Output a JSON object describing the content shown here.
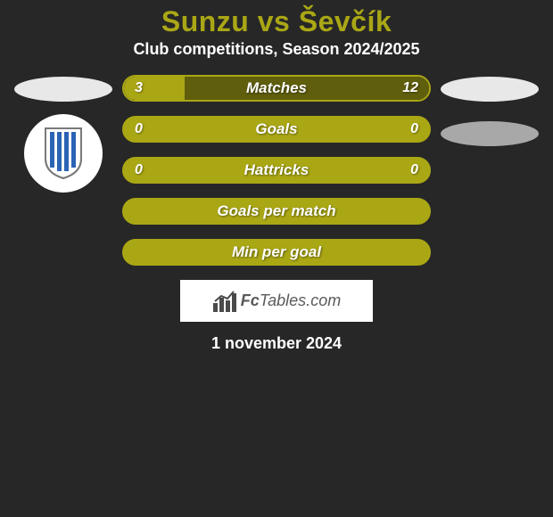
{
  "title": "Sunzu vs Ševčík",
  "subtitle": "Club competitions, Season 2024/2025",
  "date": "1 november 2024",
  "colors": {
    "background": "#272727",
    "accent": "#aaa715",
    "bar_border": "#aaa715",
    "bar_empty_fill": "#aaa715",
    "text": "#ffffff"
  },
  "logo": {
    "prefix": "Fc",
    "suffix": "Tables.com"
  },
  "club_badge": {
    "stripe_color": "#2b63b5",
    "bg": "#ffffff",
    "outline": "#7a7a7a"
  },
  "stats": [
    {
      "label": "Matches",
      "left_value": "3",
      "right_value": "12",
      "left_pct": 20,
      "right_pct": 80,
      "left_color": "#aaa715",
      "right_color": "#5f5e0c"
    },
    {
      "label": "Goals",
      "left_value": "0",
      "right_value": "0",
      "left_pct": 0,
      "right_pct": 0,
      "left_color": "#aaa715",
      "right_color": "#5f5e0c"
    },
    {
      "label": "Hattricks",
      "left_value": "0",
      "right_value": "0",
      "left_pct": 0,
      "right_pct": 0,
      "left_color": "#aaa715",
      "right_color": "#5f5e0c"
    },
    {
      "label": "Goals per match",
      "left_value": "",
      "right_value": "",
      "left_pct": 0,
      "right_pct": 0,
      "left_color": "#aaa715",
      "right_color": "#5f5e0c"
    },
    {
      "label": "Min per goal",
      "left_value": "",
      "right_value": "",
      "left_pct": 0,
      "right_pct": 0,
      "left_color": "#aaa715",
      "right_color": "#5f5e0c"
    }
  ]
}
